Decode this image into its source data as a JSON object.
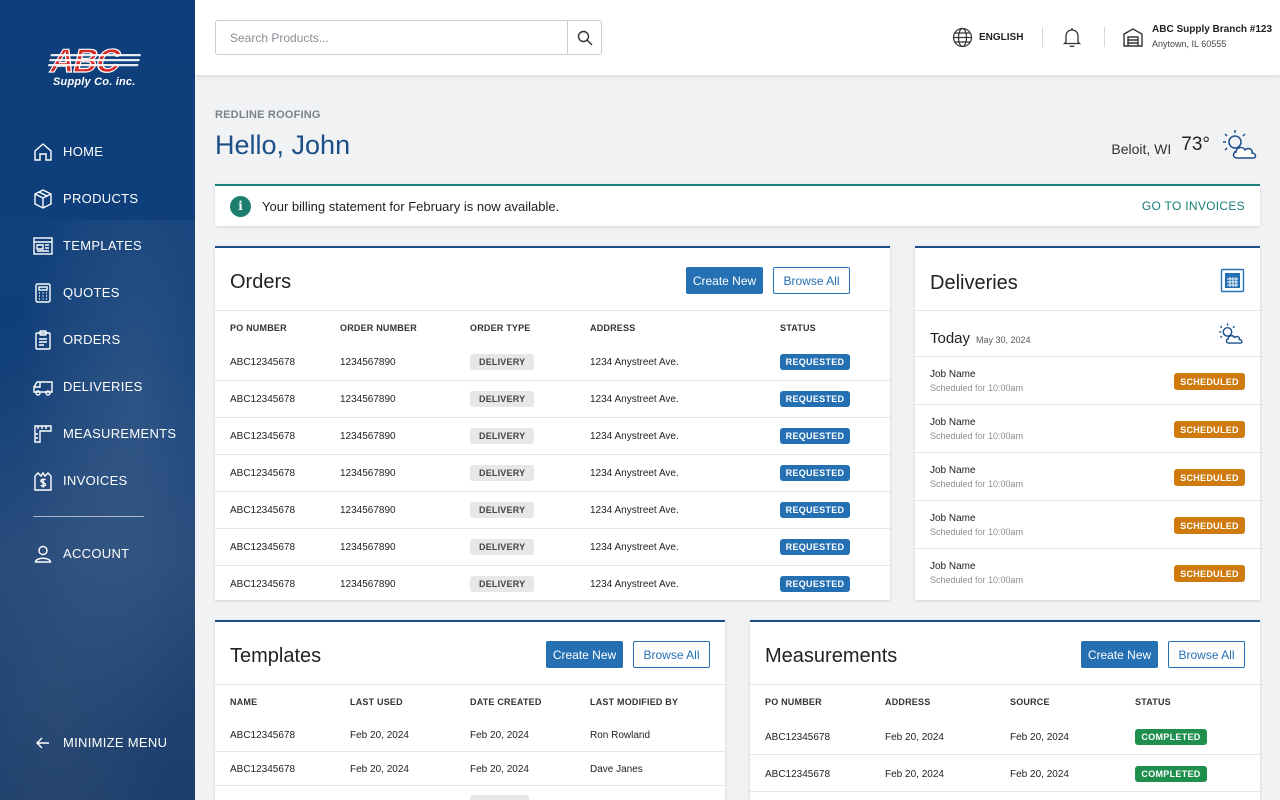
{
  "brand": {
    "logo_text": "ABC",
    "sub": "Supply Co. inc."
  },
  "nav": {
    "items": [
      {
        "label": "HOME",
        "icon": "home-icon"
      },
      {
        "label": "PRODUCTS",
        "icon": "box-icon"
      },
      {
        "label": "TEMPLATES",
        "icon": "template-icon"
      },
      {
        "label": "QUOTES",
        "icon": "calculator-icon"
      },
      {
        "label": "ORDERS",
        "icon": "clipboard-icon"
      },
      {
        "label": "DELIVERIES",
        "icon": "truck-icon"
      },
      {
        "label": "MEASUREMENTS",
        "icon": "ruler-icon"
      },
      {
        "label": "INVOICES",
        "icon": "invoice-icon"
      }
    ],
    "account": "ACCOUNT",
    "minimize": "MINIMIZE MENU"
  },
  "header": {
    "search_placeholder": "Search Products...",
    "language": "ENGLISH",
    "branch_name": "ABC Supply Branch #123",
    "branch_address": "Anytown, IL 60555"
  },
  "greeting": {
    "company": "REDLINE ROOFING",
    "hello": "Hello, John",
    "location": "Beloit, WI",
    "temperature": "73°"
  },
  "alert": {
    "message": "Your billing statement for February is now available.",
    "link": "GO TO INVOICES"
  },
  "orders": {
    "title": "Orders",
    "create_label": "Create New",
    "browse_label": "Browse All",
    "columns": [
      "PO NUMBER",
      "ORDER NUMBER",
      "ORDER TYPE",
      "ADDRESS",
      "STATUS"
    ],
    "rows": [
      {
        "po": "ABC12345678",
        "order": "1234567890",
        "type": "DELIVERY",
        "address": "1234 Anystreet Ave.",
        "status": "REQUESTED"
      },
      {
        "po": "ABC12345678",
        "order": "1234567890",
        "type": "DELIVERY",
        "address": "1234 Anystreet Ave.",
        "status": "REQUESTED"
      },
      {
        "po": "ABC12345678",
        "order": "1234567890",
        "type": "DELIVERY",
        "address": "1234 Anystreet Ave.",
        "status": "REQUESTED"
      },
      {
        "po": "ABC12345678",
        "order": "1234567890",
        "type": "DELIVERY",
        "address": "1234 Anystreet Ave.",
        "status": "REQUESTED"
      },
      {
        "po": "ABC12345678",
        "order": "1234567890",
        "type": "DELIVERY",
        "address": "1234 Anystreet Ave.",
        "status": "REQUESTED"
      },
      {
        "po": "ABC12345678",
        "order": "1234567890",
        "type": "DELIVERY",
        "address": "1234 Anystreet Ave.",
        "status": "REQUESTED"
      },
      {
        "po": "ABC12345678",
        "order": "1234567890",
        "type": "DELIVERY",
        "address": "1234 Anystreet Ave.",
        "status": "REQUESTED"
      }
    ]
  },
  "deliveries": {
    "title": "Deliveries",
    "today_label": "Today",
    "today_date": "May 30, 2024",
    "items": [
      {
        "name": "Job Name",
        "scheduled": "Scheduled for 10:00am",
        "status": "SCHEDULED"
      },
      {
        "name": "Job Name",
        "scheduled": "Scheduled for 10:00am",
        "status": "SCHEDULED"
      },
      {
        "name": "Job Name",
        "scheduled": "Scheduled for 10:00am",
        "status": "SCHEDULED"
      },
      {
        "name": "Job Name",
        "scheduled": "Scheduled for 10:00am",
        "status": "SCHEDULED"
      },
      {
        "name": "Job Name",
        "scheduled": "Scheduled for 10:00am",
        "status": "SCHEDULED"
      }
    ]
  },
  "templates": {
    "title": "Templates",
    "create_label": "Create New",
    "browse_label": "Browse All",
    "columns": [
      "NAME",
      "LAST USED",
      "DATE CREATED",
      "LAST MODIFIED BY"
    ],
    "rows": [
      {
        "name": "ABC12345678",
        "last_used": "Feb 20, 2024",
        "created": "Feb 20, 2024",
        "modified_by": "Ron Rowland"
      },
      {
        "name": "ABC12345678",
        "last_used": "Feb 20, 2024",
        "created": "Feb 20, 2024",
        "modified_by": "Dave Janes"
      }
    ]
  },
  "measurements": {
    "title": "Measurements",
    "create_label": "Create New",
    "browse_label": "Browse All",
    "columns": [
      "PO NUMBER",
      "ADDRESS",
      "SOURCE",
      "STATUS"
    ],
    "rows": [
      {
        "po": "ABC12345678",
        "address": "Feb 20, 2024",
        "source": "Feb 20, 2024",
        "status": "COMPLETED"
      },
      {
        "po": "ABC12345678",
        "address": "Feb 20, 2024",
        "source": "Feb 20, 2024",
        "status": "COMPLETED"
      }
    ]
  },
  "colors": {
    "sidebar": "#0d3f7c",
    "primary": "#2470b3",
    "heading": "#1b4f8a",
    "alert_accent": "#1a7d7a",
    "requested": "#2470b3",
    "scheduled": "#cf7a0d",
    "completed": "#1f8f4e"
  }
}
